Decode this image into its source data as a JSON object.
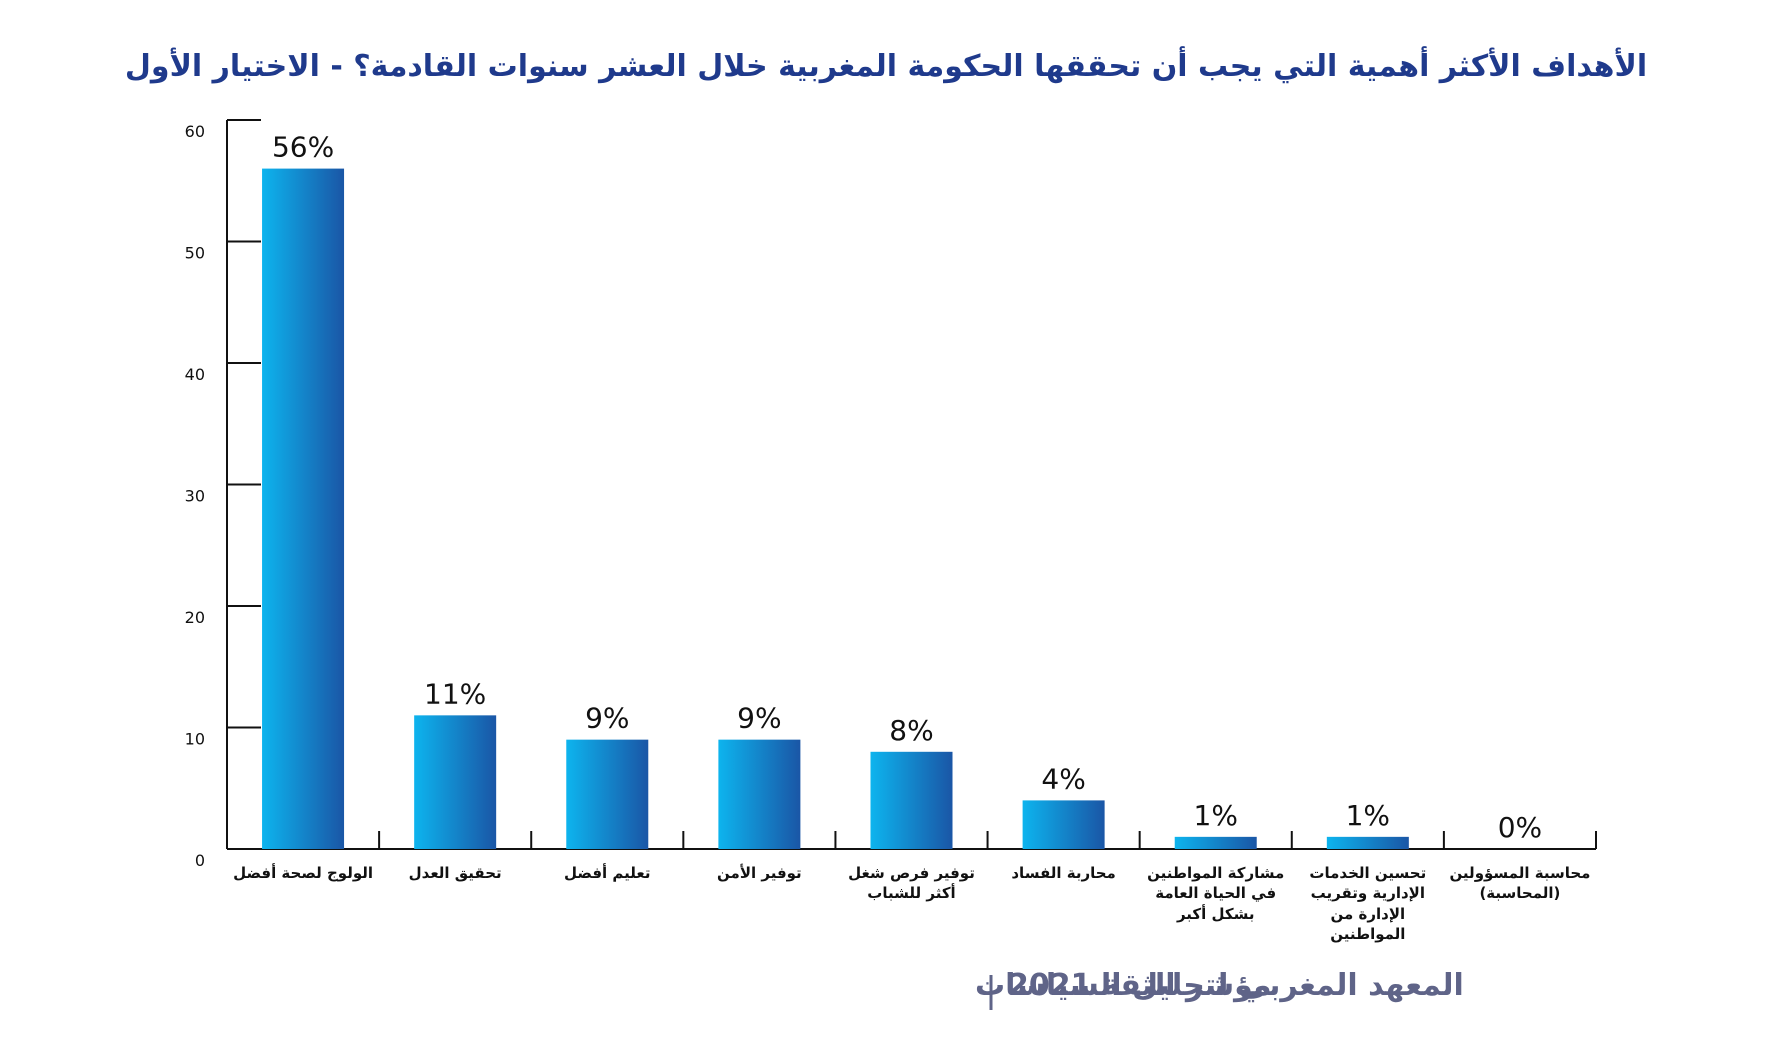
{
  "chart_data": {
    "type": "bar",
    "title": "الأهداف الأكثر أهمية التي يجب أن تحققها الحكومة المغربية خلال العشر سنوات القادمة؟ - الاختيار الأول",
    "categories": [
      "الولوج لصحة أفضل",
      "تحقيق العدل",
      "تعليم أفضل",
      "توفير الأمن",
      "توفير فرص شغل أكثر للشباب",
      "محاربة الفساد",
      "مشاركة المواطنين في الحياة العامة بشكل أكبر",
      "تحسين الخدمات الإدارية وتقريب الإدارة من المواطنين",
      "محاسبة المسؤولين (المحاسبة)"
    ],
    "values": [
      56,
      11,
      9,
      9,
      8,
      4,
      1,
      1,
      0
    ],
    "value_labels": [
      "56%",
      "11%",
      "9%",
      "9%",
      "8%",
      "4%",
      "1%",
      "1%",
      "0%"
    ],
    "gradient": [
      "#0db4ee",
      "#1a56a6"
    ],
    "ylim": [
      0,
      60
    ],
    "yticks": [
      0,
      10,
      20,
      30,
      40,
      50,
      60
    ],
    "source": [
      "مؤشر الثقة 2021",
      "المعهد المغربي لتحليل السياسات"
    ]
  }
}
